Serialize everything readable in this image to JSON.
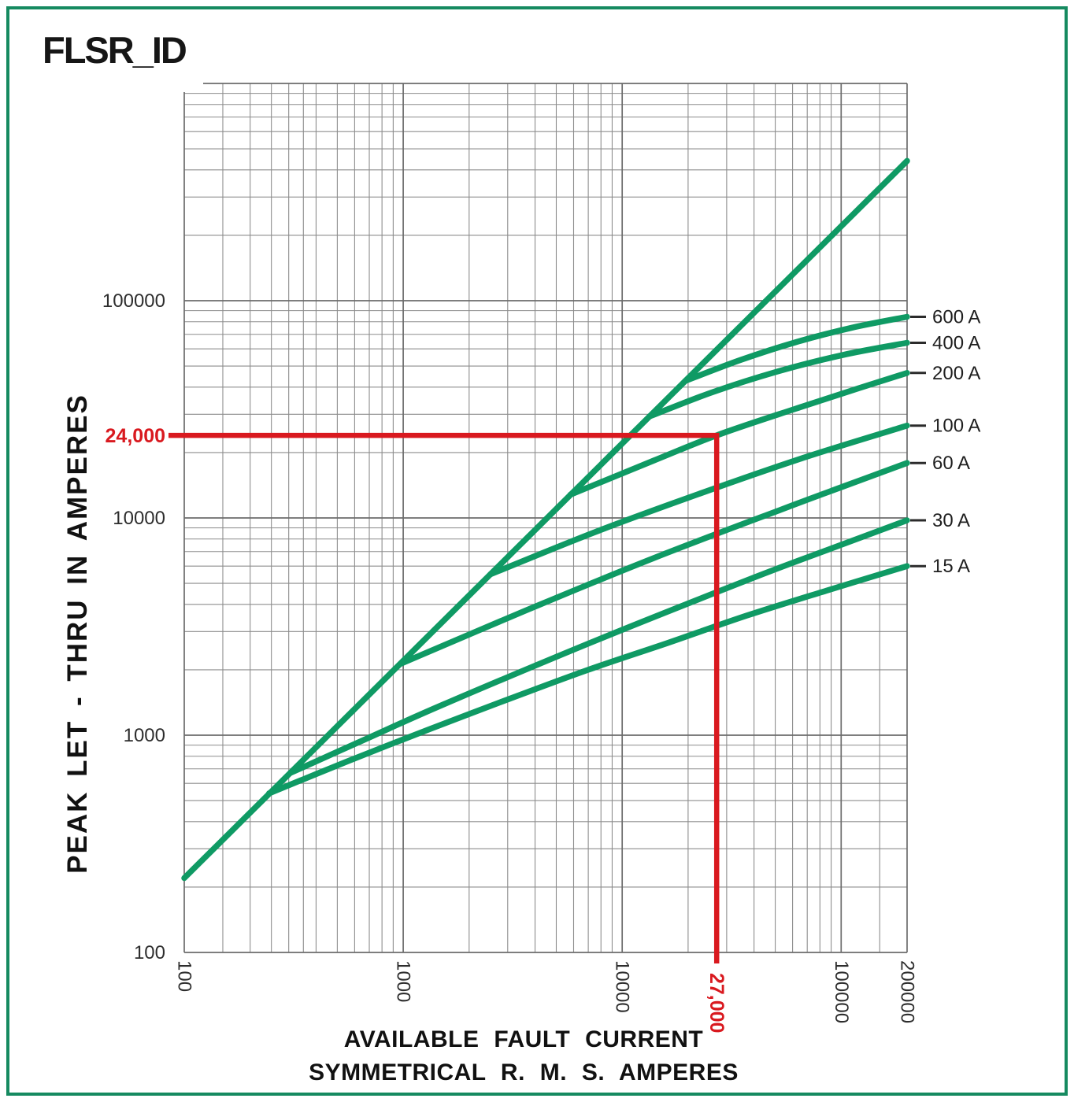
{
  "title": "FLSR_ID",
  "colors": {
    "curve_green": "#0f9a64",
    "border_green": "#168a60",
    "annotation_red": "#d9191f",
    "grid_gray": "#8d8d8d",
    "text_black": "#161616"
  },
  "chart_data": {
    "type": "line",
    "title": "FLSR_ID",
    "xlabel_line1": "AVAILABLE FAULT CURRENT",
    "xlabel_line2": "SYMMETRICAL R. M. S. AMPERES",
    "ylabel": "PEAK LET - THRU IN AMPERES",
    "x_scale": "log",
    "y_scale": "log",
    "xlim": [
      100,
      200000
    ],
    "ylim": [
      100,
      1000000
    ],
    "grid": "on",
    "legend_position": "right-edge-labels",
    "x_ticks": [
      {
        "value": 100,
        "label": "100"
      },
      {
        "value": 1000,
        "label": "1000"
      },
      {
        "value": 10000,
        "label": "10000"
      },
      {
        "value": 100000,
        "label": "100000"
      },
      {
        "value": 200000,
        "label": "200000"
      }
    ],
    "y_ticks": [
      {
        "value": 100,
        "label": "100"
      },
      {
        "value": 1000,
        "label": "1000"
      },
      {
        "value": 10000,
        "label": "10000"
      },
      {
        "value": 100000,
        "label": "100000"
      }
    ],
    "x_minor_multiples_first_decade": [
      1.5,
      2,
      2.5,
      3,
      3.5,
      4,
      5,
      6,
      7,
      8,
      9
    ],
    "x_minor_multiples": [
      2,
      3,
      4,
      5,
      6,
      7,
      8,
      9
    ],
    "x_minor_multiples_last_decade": [
      1.5
    ],
    "y_minor_multiples": [
      2,
      3,
      4,
      5,
      6,
      7,
      8,
      9
    ],
    "series": [
      {
        "name": "peak-available-diagonal",
        "label": null,
        "points": [
          [
            100,
            220
          ],
          [
            200000,
            440000
          ]
        ]
      },
      {
        "name": "600A",
        "label": "600 A",
        "points": [
          [
            19400,
            42700
          ],
          [
            34800,
            53400
          ],
          [
            62300,
            64500
          ],
          [
            112000,
            75100
          ],
          [
            200000,
            84300
          ]
        ]
      },
      {
        "name": "400A",
        "label": "400 A",
        "points": [
          [
            13300,
            29300
          ],
          [
            26000,
            38000
          ],
          [
            51600,
            47300
          ],
          [
            102000,
            56300
          ],
          [
            200000,
            64000
          ]
        ]
      },
      {
        "name": "200A",
        "label": "200 A",
        "points": [
          [
            5800,
            12800
          ],
          [
            14000,
            18400
          ],
          [
            27000,
            24000
          ],
          [
            60000,
            31500
          ],
          [
            120000,
            39500
          ],
          [
            200000,
            46500
          ]
        ]
      },
      {
        "name": "100A",
        "label": "100 A",
        "points": [
          [
            2500,
            5500
          ],
          [
            7500,
            8600
          ],
          [
            22400,
            12900
          ],
          [
            67000,
            18900
          ],
          [
            200000,
            26600
          ]
        ]
      },
      {
        "name": "60A",
        "label": "60 A",
        "points": [
          [
            970,
            2130
          ],
          [
            3700,
            3780
          ],
          [
            13900,
            6530
          ],
          [
            52800,
            10900
          ],
          [
            103000,
            14000
          ],
          [
            200000,
            17900
          ]
        ]
      },
      {
        "name": "30A",
        "label": "30 A",
        "points": [
          [
            305,
            670
          ],
          [
            690,
            970
          ],
          [
            1540,
            1390
          ],
          [
            7800,
            2760
          ],
          [
            39500,
            5290
          ],
          [
            89000,
            7200
          ],
          [
            200000,
            9750
          ]
        ]
      },
      {
        "name": "15A",
        "label": "15 A",
        "points": [
          [
            244,
            540
          ],
          [
            560,
            760
          ],
          [
            1300,
            1060
          ],
          [
            3000,
            1460
          ],
          [
            7000,
            2000
          ],
          [
            16000,
            2650
          ],
          [
            37000,
            3550
          ],
          [
            87000,
            4650
          ],
          [
            200000,
            6000
          ]
        ]
      }
    ],
    "annotation": {
      "fault_current": 27000,
      "peak_let_through": 24000,
      "x_label": "27,000",
      "y_label": "24,000"
    }
  }
}
